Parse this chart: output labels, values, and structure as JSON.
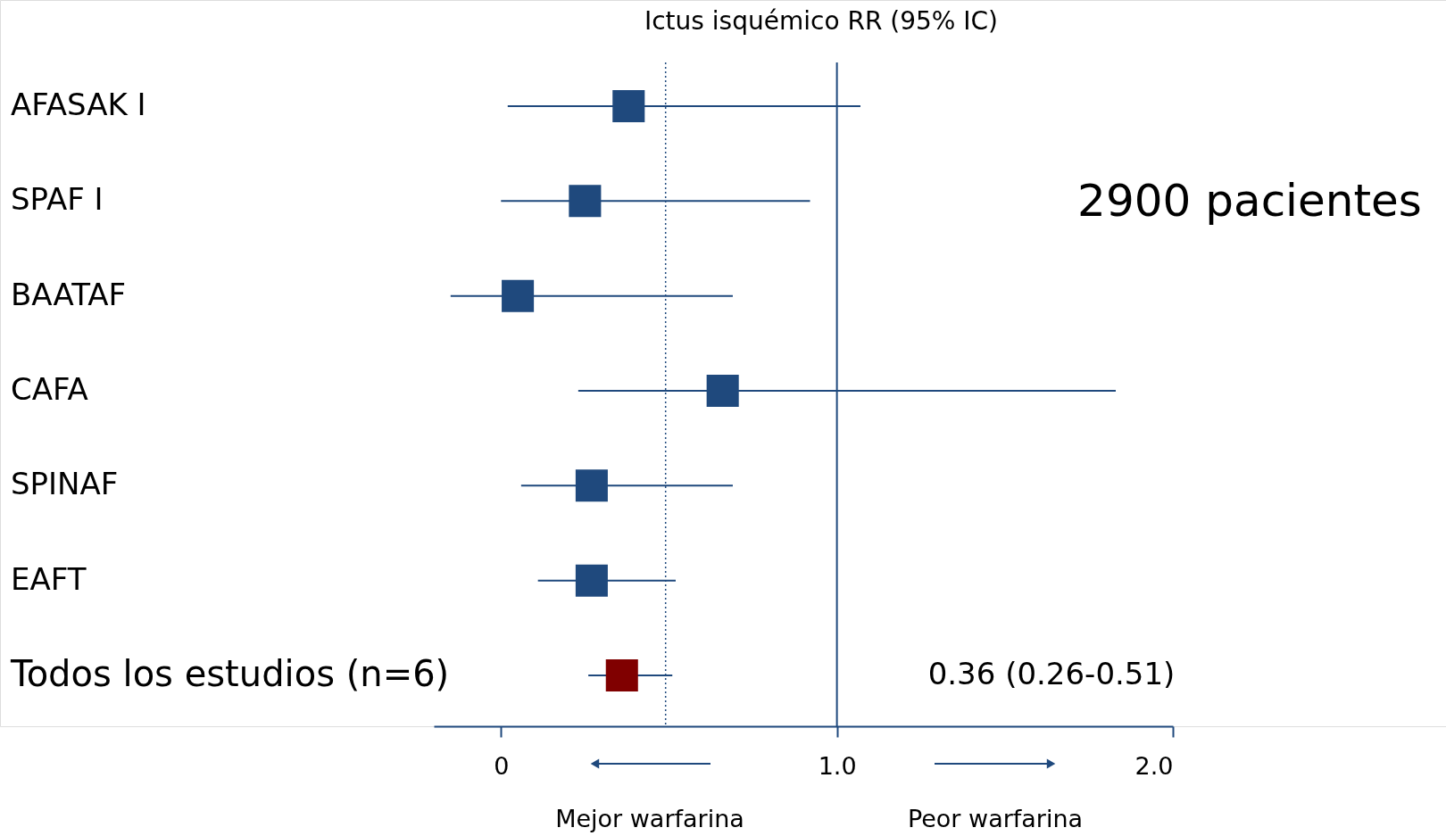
{
  "chart_data": {
    "type": "scatter",
    "title": "Ictus isquémico RR (95% IC)",
    "categories": [
      "AFASAK I",
      "SPAF I",
      "BAATAF",
      "CAFA",
      "SPINAF",
      "EAFT",
      "Todos los estudios (n=6)"
    ],
    "values": [
      0.38,
      0.25,
      0.05,
      0.66,
      0.27,
      0.27,
      0.36
    ],
    "errors": [
      [
        0.02,
        1.07
      ],
      [
        0.0,
        0.92
      ],
      [
        -0.15,
        0.69
      ],
      [
        0.23,
        1.83
      ],
      [
        0.06,
        0.69
      ],
      [
        0.11,
        0.52
      ],
      [
        0.26,
        0.51
      ]
    ],
    "color": "#1f497d",
    "colors": [
      "#1f497d",
      "#1f497d",
      "#1f497d",
      "#1f497d",
      "#1f497d",
      "#1f497d",
      "#800000"
    ],
    "marker": "square",
    "orientation": "horizontal",
    "xlim": [
      -0.2,
      2.0
    ],
    "xticks": [
      0,
      {
        "value": 1,
        "label": "1.0"
      },
      {
        "value": 2,
        "label": "2.0"
      }
    ],
    "grid": false,
    "ref_lines": [
      {
        "axis": "x",
        "value": 1.0,
        "line_style": "solid"
      },
      {
        "axis": "x",
        "value": 0.49,
        "line_style": "dotted"
      }
    ],
    "annotations": [
      "2900 pacientes",
      "0.36 (0.26-0.51)",
      "Mejor warfarina",
      "Peor warfarina"
    ]
  }
}
